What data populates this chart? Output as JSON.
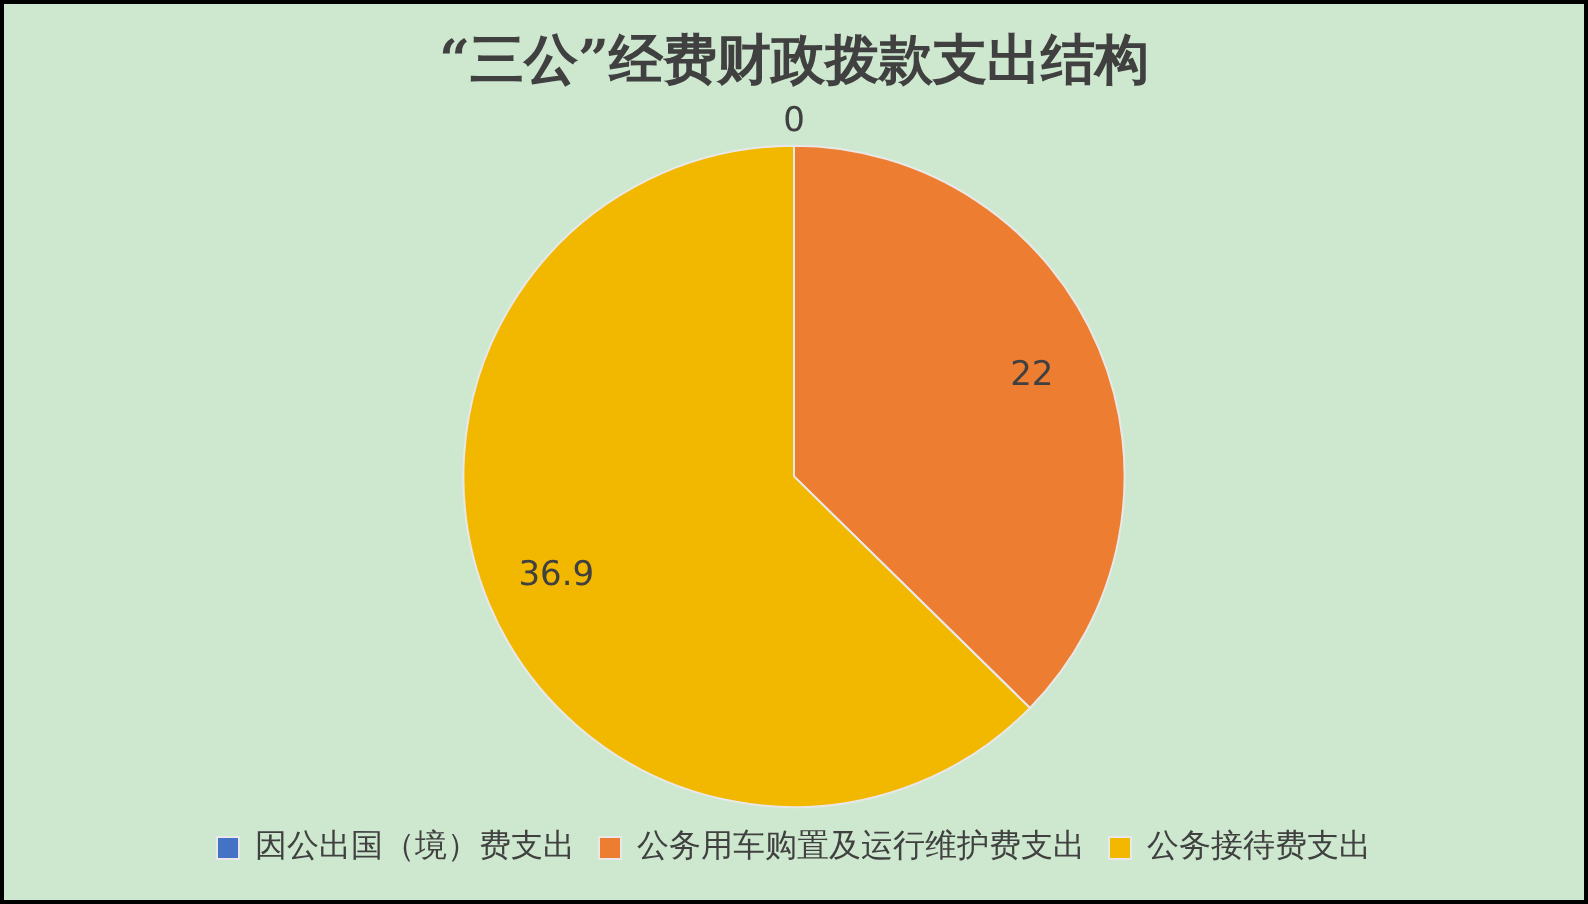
{
  "chart_data": {
    "type": "pie",
    "title": "“三公”经费财政拨款支出结构",
    "categories": [
      "因公出国（境）费支出",
      "公务用车购置及运行维护费支出",
      "公务接待费支出"
    ],
    "values": [
      0,
      22,
      36.9
    ],
    "colors": [
      "#4472c4",
      "#ed7d31",
      "#f2b800"
    ],
    "value_labels": [
      "0",
      "22",
      "36.9"
    ],
    "legend": "bottom"
  }
}
